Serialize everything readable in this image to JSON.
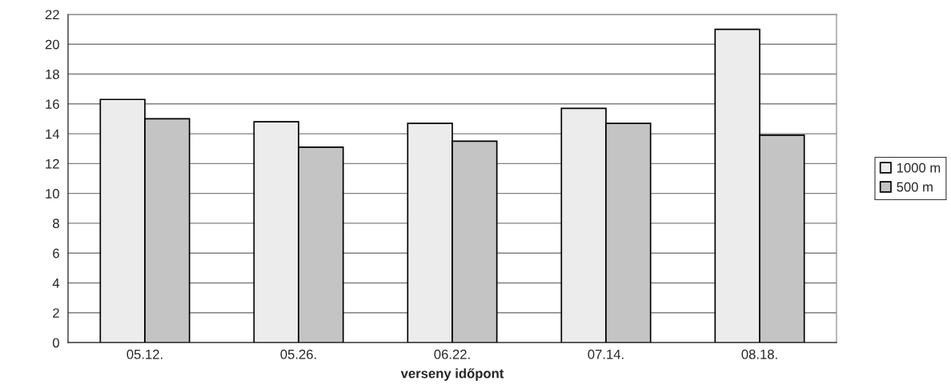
{
  "chart_data": {
    "type": "bar",
    "xlabel": "verseny időpont",
    "categories": [
      "05.12.",
      "05.26.",
      "06.22.",
      "07.14.",
      "08.18."
    ],
    "series": [
      {
        "name": "1000 m",
        "color": "#ececec",
        "values": [
          16.3,
          14.8,
          14.7,
          15.7,
          21.0
        ]
      },
      {
        "name": "500 m",
        "color": "#c4c4c4",
        "values": [
          15.0,
          13.1,
          13.5,
          14.7,
          13.9
        ]
      }
    ],
    "ylim": [
      0,
      22
    ],
    "yticks": [
      0,
      2,
      4,
      6,
      8,
      10,
      12,
      14,
      16,
      18,
      20,
      22
    ],
    "grid": "y",
    "legend": "right"
  }
}
